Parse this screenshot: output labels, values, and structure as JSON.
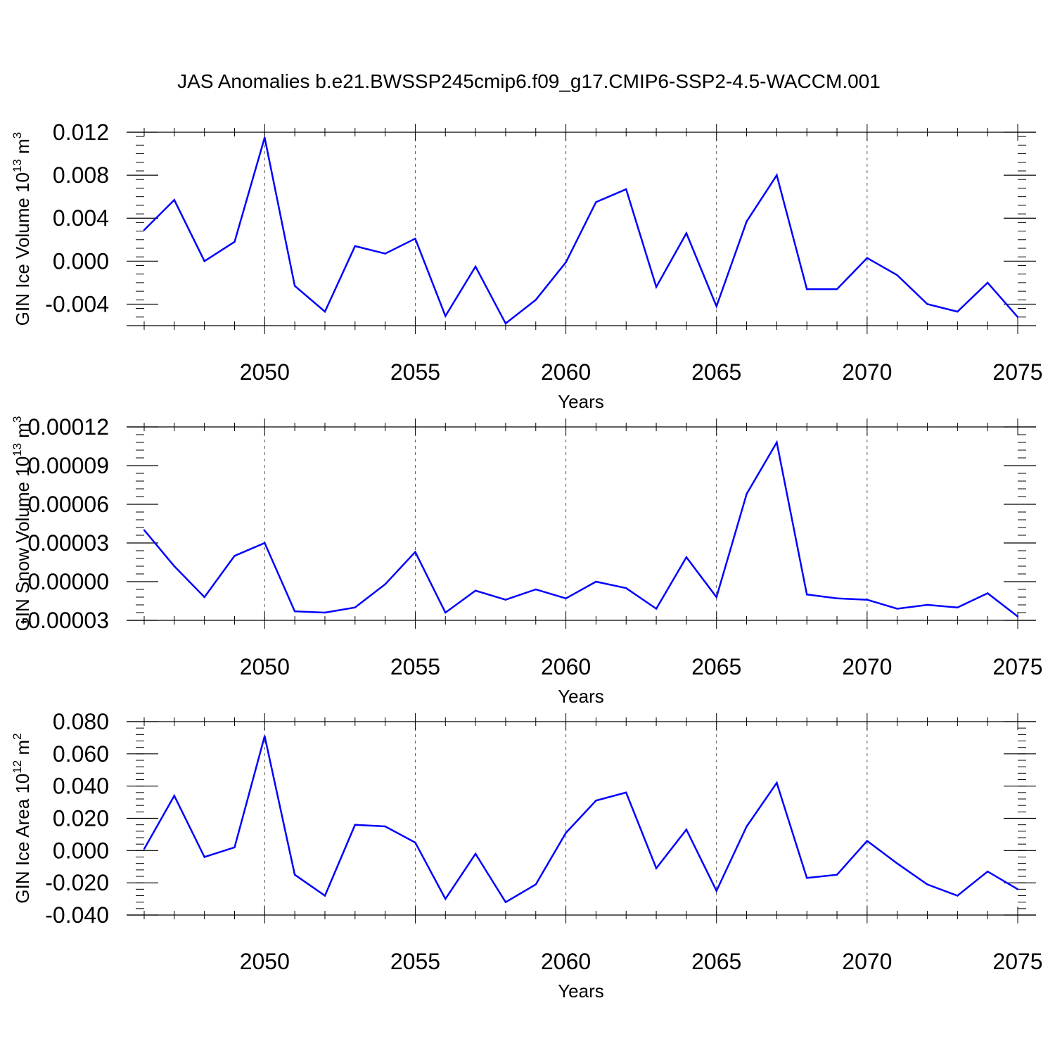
{
  "title": "JAS Anomalies b.e21.BWSSP245cmip6.f09_g17.CMIP6-SSP2-4.5-WACCM.001",
  "colors": {
    "line": "#0000ff",
    "axis": "#000000",
    "grid": "#555555"
  },
  "chart_data": [
    {
      "type": "line",
      "ylabel_main": "GIN Ice Volume 10",
      "ylabel_exp": "13",
      "ylabel_unit": " m",
      "ylabel_unit_exp": "3",
      "xlabel": "Years",
      "xlim": [
        2046,
        2075
      ],
      "ylim": [
        -0.006,
        0.012
      ],
      "yticks": [
        -0.004,
        0.0,
        0.004,
        0.008,
        0.012
      ],
      "ytick_labels": [
        "-0.004",
        "0.000",
        "0.004",
        "0.008",
        "0.012"
      ],
      "xticks": [
        2050,
        2055,
        2060,
        2065,
        2070,
        2075
      ],
      "xtick_labels": [
        "2050",
        "2055",
        "2060",
        "2065",
        "2070",
        "2075"
      ],
      "x": [
        2046,
        2047,
        2048,
        2049,
        2050,
        2051,
        2052,
        2053,
        2054,
        2055,
        2056,
        2057,
        2058,
        2059,
        2060,
        2061,
        2062,
        2063,
        2064,
        2065,
        2066,
        2067,
        2068,
        2069,
        2070,
        2071,
        2072,
        2073,
        2074,
        2075
      ],
      "values": [
        0.0029,
        0.0057,
        0.0,
        0.0018,
        0.0115,
        -0.0023,
        -0.0047,
        0.0014,
        0.0007,
        0.0021,
        -0.0051,
        -0.0005,
        -0.0058,
        -0.0036,
        -0.0001,
        0.0055,
        0.0067,
        -0.0024,
        0.0026,
        -0.0042,
        0.0037,
        0.008,
        -0.0026,
        -0.0026,
        0.0003,
        -0.0013,
        -0.004,
        -0.0047,
        -0.002,
        -0.0052
      ]
    },
    {
      "type": "line",
      "ylabel_main": "GIN Snow Volume 10",
      "ylabel_exp": "13",
      "ylabel_unit": " m",
      "ylabel_unit_exp": "3",
      "xlabel": "Years",
      "xlim": [
        2046,
        2075
      ],
      "ylim": [
        -3e-05,
        0.00012
      ],
      "yticks": [
        -3e-05,
        0.0,
        3e-05,
        6e-05,
        9e-05,
        0.00012
      ],
      "ytick_labels": [
        "-0.00003",
        "0.00000",
        "0.00003",
        "0.00006",
        "0.00009",
        "0.00012"
      ],
      "xticks": [
        2050,
        2055,
        2060,
        2065,
        2070,
        2075
      ],
      "xtick_labels": [
        "2050",
        "2055",
        "2060",
        "2065",
        "2070",
        "2075"
      ],
      "x": [
        2046,
        2047,
        2048,
        2049,
        2050,
        2051,
        2052,
        2053,
        2054,
        2055,
        2056,
        2057,
        2058,
        2059,
        2060,
        2061,
        2062,
        2063,
        2064,
        2065,
        2066,
        2067,
        2068,
        2069,
        2070,
        2071,
        2072,
        2073,
        2074,
        2075
      ],
      "values": [
        4e-05,
        1.2e-05,
        -1.2e-05,
        2e-05,
        3e-05,
        -2.3e-05,
        -2.4e-05,
        -2e-05,
        -2e-06,
        2.3e-05,
        -2.4e-05,
        -7e-06,
        -1.4e-05,
        -6e-06,
        -1.3e-05,
        0.0,
        -5e-06,
        -2.1e-05,
        1.9e-05,
        -1.2e-05,
        6.8e-05,
        0.000108,
        -1e-05,
        -1.3e-05,
        -1.4e-05,
        -2.1e-05,
        -1.8e-05,
        -2e-05,
        -9e-06,
        -2.7e-05
      ]
    },
    {
      "type": "line",
      "ylabel_main": "GIN Ice Area 10",
      "ylabel_exp": "12",
      "ylabel_unit": " m",
      "ylabel_unit_exp": "2",
      "xlabel": "Years",
      "xlim": [
        2046,
        2075
      ],
      "ylim": [
        -0.04,
        0.08
      ],
      "yticks": [
        -0.04,
        -0.02,
        0.0,
        0.02,
        0.04,
        0.06,
        0.08
      ],
      "ytick_labels": [
        "-0.040",
        "-0.020",
        "0.000",
        "0.020",
        "0.040",
        "0.060",
        "0.080"
      ],
      "xticks": [
        2050,
        2055,
        2060,
        2065,
        2070,
        2075
      ],
      "xtick_labels": [
        "2050",
        "2055",
        "2060",
        "2065",
        "2070",
        "2075"
      ],
      "x": [
        2046,
        2047,
        2048,
        2049,
        2050,
        2051,
        2052,
        2053,
        2054,
        2055,
        2056,
        2057,
        2058,
        2059,
        2060,
        2061,
        2062,
        2063,
        2064,
        2065,
        2066,
        2067,
        2068,
        2069,
        2070,
        2071,
        2072,
        2073,
        2074,
        2075
      ],
      "values": [
        0.001,
        0.034,
        -0.004,
        0.002,
        0.071,
        -0.015,
        -0.028,
        0.016,
        0.015,
        0.005,
        -0.03,
        -0.002,
        -0.032,
        -0.021,
        0.011,
        0.031,
        0.036,
        -0.011,
        0.013,
        -0.025,
        0.015,
        0.042,
        -0.017,
        -0.015,
        0.006,
        -0.008,
        -0.021,
        -0.028,
        -0.013,
        -0.024
      ]
    }
  ]
}
